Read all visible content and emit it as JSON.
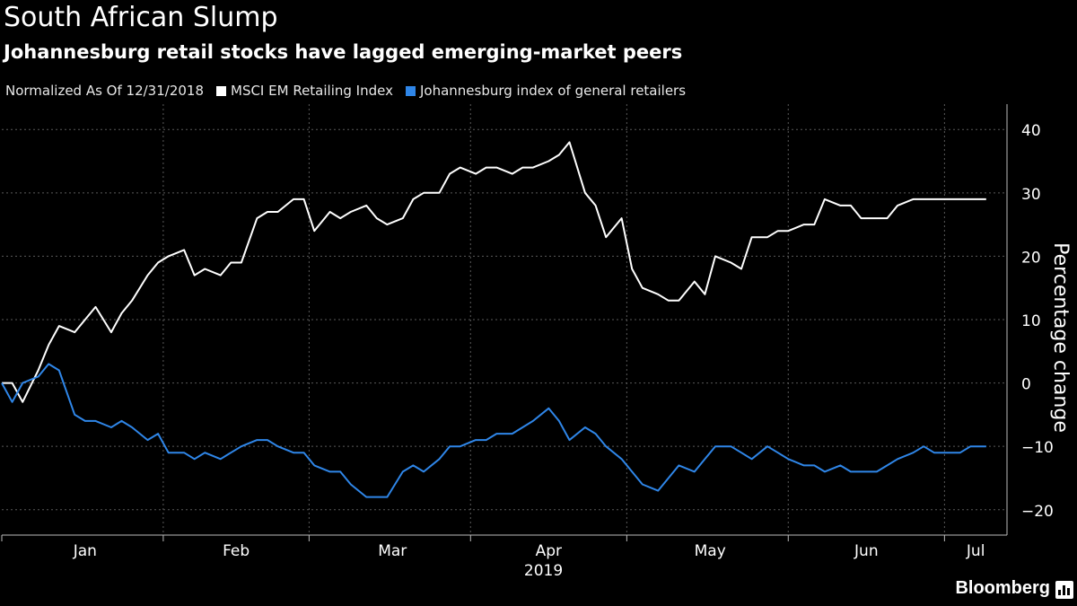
{
  "header": {
    "title": "South African Slump",
    "subtitle": "Johannesburg retail stocks have lagged emerging-market peers"
  },
  "legend": {
    "note": "Normalized As Of 12/31/2018",
    "items": [
      {
        "label": "MSCI EM Retailing Index",
        "color": "#ffffff"
      },
      {
        "label": "Johannesburg index of general retailers",
        "color": "#2f86e8"
      }
    ]
  },
  "branding": {
    "logo_text": "Bloomberg",
    "logo_icon": "bloomberg-chart-icon"
  },
  "chart_data": {
    "type": "line",
    "title": "South African Slump",
    "subtitle": "Johannesburg retail stocks have lagged emerging-market peers",
    "ylabel": "Percentage change",
    "xlabel": "2019",
    "ylim": [
      -24,
      44
    ],
    "yticks": [
      40,
      30,
      20,
      10,
      0,
      -10,
      -20
    ],
    "xlim": [
      "2018-12-31",
      "2019-07-12"
    ],
    "x_month_ticks": [
      "Jan",
      "Feb",
      "Mar",
      "Apr",
      "May",
      "Jun",
      "Jul"
    ],
    "x_year_label": "2019",
    "grid": true,
    "legend_position": "top-left",
    "y_axis_side": "right",
    "series": [
      {
        "name": "MSCI EM Retailing Index",
        "color": "#ffffff",
        "x": [
          "2018-12-31",
          "2019-01-02",
          "2019-01-04",
          "2019-01-07",
          "2019-01-09",
          "2019-01-11",
          "2019-01-14",
          "2019-01-16",
          "2019-01-18",
          "2019-01-21",
          "2019-01-23",
          "2019-01-25",
          "2019-01-28",
          "2019-01-30",
          "2019-02-01",
          "2019-02-04",
          "2019-02-06",
          "2019-02-08",
          "2019-02-11",
          "2019-02-13",
          "2019-02-15",
          "2019-02-18",
          "2019-02-20",
          "2019-02-22",
          "2019-02-25",
          "2019-02-27",
          "2019-03-01",
          "2019-03-04",
          "2019-03-06",
          "2019-03-08",
          "2019-03-11",
          "2019-03-13",
          "2019-03-15",
          "2019-03-18",
          "2019-03-20",
          "2019-03-22",
          "2019-03-25",
          "2019-03-27",
          "2019-03-29",
          "2019-04-01",
          "2019-04-03",
          "2019-04-05",
          "2019-04-08",
          "2019-04-10",
          "2019-04-12",
          "2019-04-15",
          "2019-04-17",
          "2019-04-19",
          "2019-04-22",
          "2019-04-24",
          "2019-04-26",
          "2019-04-29",
          "2019-05-01",
          "2019-05-03",
          "2019-05-06",
          "2019-05-08",
          "2019-05-10",
          "2019-05-13",
          "2019-05-15",
          "2019-05-17",
          "2019-05-20",
          "2019-05-22",
          "2019-05-24",
          "2019-05-27",
          "2019-05-29",
          "2019-05-31",
          "2019-06-03",
          "2019-06-05",
          "2019-06-07",
          "2019-06-10",
          "2019-06-12",
          "2019-06-14",
          "2019-06-17",
          "2019-06-19",
          "2019-06-21",
          "2019-06-24",
          "2019-06-26",
          "2019-06-28",
          "2019-07-01",
          "2019-07-03",
          "2019-07-05",
          "2019-07-08"
        ],
        "values": [
          0,
          0,
          -3,
          2,
          6,
          9,
          8,
          10,
          12,
          8,
          11,
          13,
          17,
          19,
          20,
          21,
          17,
          18,
          17,
          19,
          19,
          26,
          27,
          27,
          29,
          29,
          24,
          27,
          26,
          27,
          28,
          26,
          25,
          26,
          29,
          30,
          30,
          33,
          34,
          33,
          34,
          34,
          33,
          34,
          34,
          35,
          36,
          38,
          30,
          28,
          23,
          26,
          18,
          15,
          14,
          13,
          13,
          16,
          14,
          20,
          19,
          18,
          23,
          23,
          24,
          24,
          25,
          25,
          29,
          28,
          28,
          26,
          26,
          26,
          28,
          29,
          29,
          29,
          29,
          29,
          29,
          29
        ]
      },
      {
        "name": "Johannesburg index of general retailers",
        "color": "#2f86e8",
        "x": [
          "2018-12-31",
          "2019-01-02",
          "2019-01-04",
          "2019-01-07",
          "2019-01-09",
          "2019-01-11",
          "2019-01-14",
          "2019-01-16",
          "2019-01-18",
          "2019-01-21",
          "2019-01-23",
          "2019-01-25",
          "2019-01-28",
          "2019-01-30",
          "2019-02-01",
          "2019-02-04",
          "2019-02-06",
          "2019-02-08",
          "2019-02-11",
          "2019-02-13",
          "2019-02-15",
          "2019-02-18",
          "2019-02-20",
          "2019-02-22",
          "2019-02-25",
          "2019-02-27",
          "2019-03-01",
          "2019-03-04",
          "2019-03-06",
          "2019-03-08",
          "2019-03-11",
          "2019-03-13",
          "2019-03-15",
          "2019-03-18",
          "2019-03-20",
          "2019-03-22",
          "2019-03-25",
          "2019-03-27",
          "2019-03-29",
          "2019-04-01",
          "2019-04-03",
          "2019-04-05",
          "2019-04-08",
          "2019-04-10",
          "2019-04-12",
          "2019-04-15",
          "2019-04-17",
          "2019-04-19",
          "2019-04-22",
          "2019-04-24",
          "2019-04-26",
          "2019-04-29",
          "2019-05-01",
          "2019-05-03",
          "2019-05-06",
          "2019-05-08",
          "2019-05-10",
          "2019-05-13",
          "2019-05-15",
          "2019-05-17",
          "2019-05-20",
          "2019-05-22",
          "2019-05-24",
          "2019-05-27",
          "2019-05-29",
          "2019-05-31",
          "2019-06-03",
          "2019-06-05",
          "2019-06-07",
          "2019-06-10",
          "2019-06-12",
          "2019-06-14",
          "2019-06-17",
          "2019-06-19",
          "2019-06-21",
          "2019-06-24",
          "2019-06-26",
          "2019-06-28",
          "2019-07-01",
          "2019-07-03",
          "2019-07-05",
          "2019-07-08"
        ],
        "values": [
          0,
          -3,
          0,
          1,
          3,
          2,
          -5,
          -6,
          -6,
          -7,
          -6,
          -7,
          -9,
          -8,
          -11,
          -11,
          -12,
          -11,
          -12,
          -11,
          -10,
          -9,
          -9,
          -10,
          -11,
          -11,
          -13,
          -14,
          -14,
          -16,
          -18,
          -18,
          -18,
          -14,
          -13,
          -14,
          -12,
          -10,
          -10,
          -9,
          -9,
          -8,
          -8,
          -7,
          -6,
          -4,
          -6,
          -9,
          -7,
          -8,
          -10,
          -12,
          -14,
          -16,
          -17,
          -15,
          -13,
          -14,
          -12,
          -10,
          -10,
          -11,
          -12,
          -10,
          -11,
          -12,
          -13,
          -13,
          -14,
          -13,
          -14,
          -14,
          -14,
          -13,
          -12,
          -11,
          -10,
          -11,
          -11,
          -11,
          -10,
          -10
        ]
      }
    ]
  }
}
